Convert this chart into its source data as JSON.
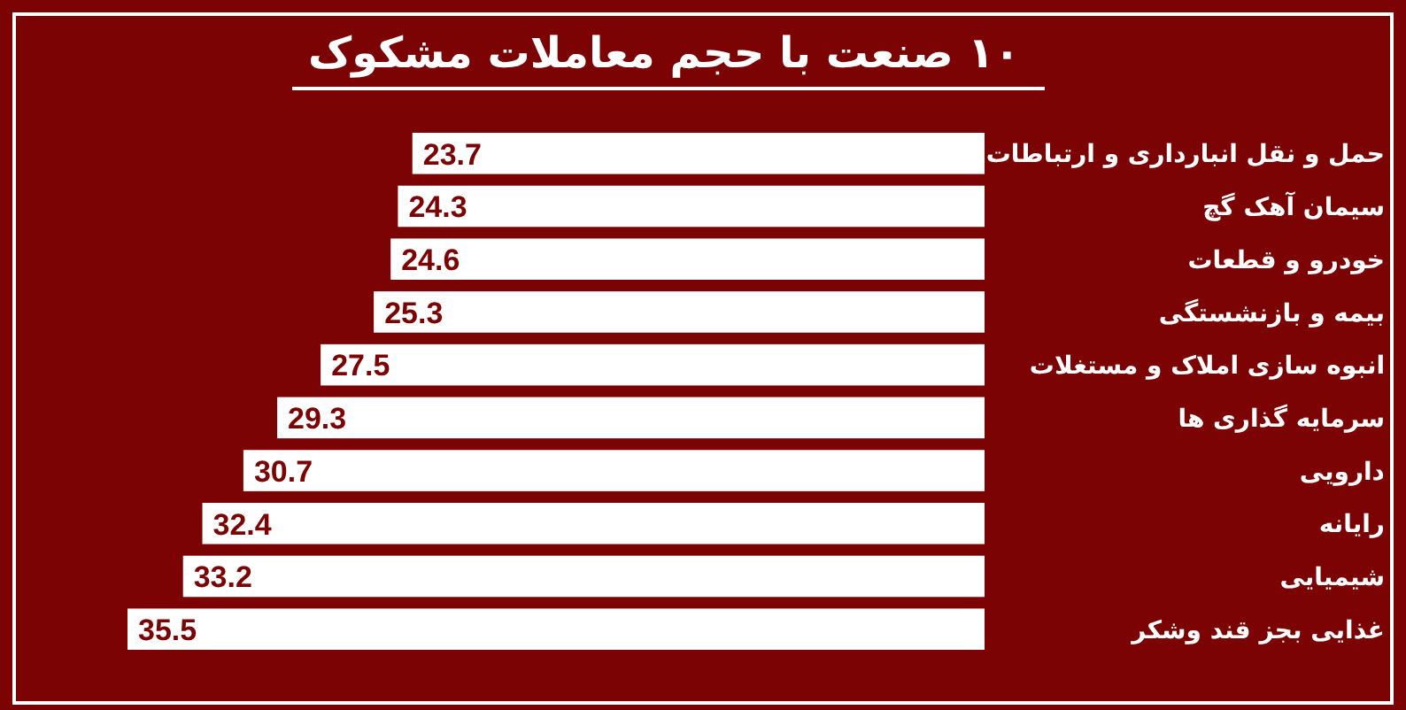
{
  "chart_data": {
    "type": "bar",
    "orientation": "horizontal",
    "title": "۱۰ صنعت با حجم معاملات مشکوک",
    "categories": [
      "حمل و نقل انبارداری و ارتباطات",
      "سیمان آهک گچ",
      "خودرو و قطعات",
      "بیمه و بازنشستگی",
      "انبوه سازی املاک و مستغلات",
      "سرمایه گذاری ها",
      "دارویی",
      "رایانه",
      "شیمیایی",
      "غذایی بجز قند وشکر"
    ],
    "values": [
      23.7,
      24.3,
      24.6,
      25.3,
      27.5,
      29.3,
      30.7,
      32.4,
      33.2,
      35.5
    ],
    "color": "#ffffff",
    "data_labels": true
  }
}
